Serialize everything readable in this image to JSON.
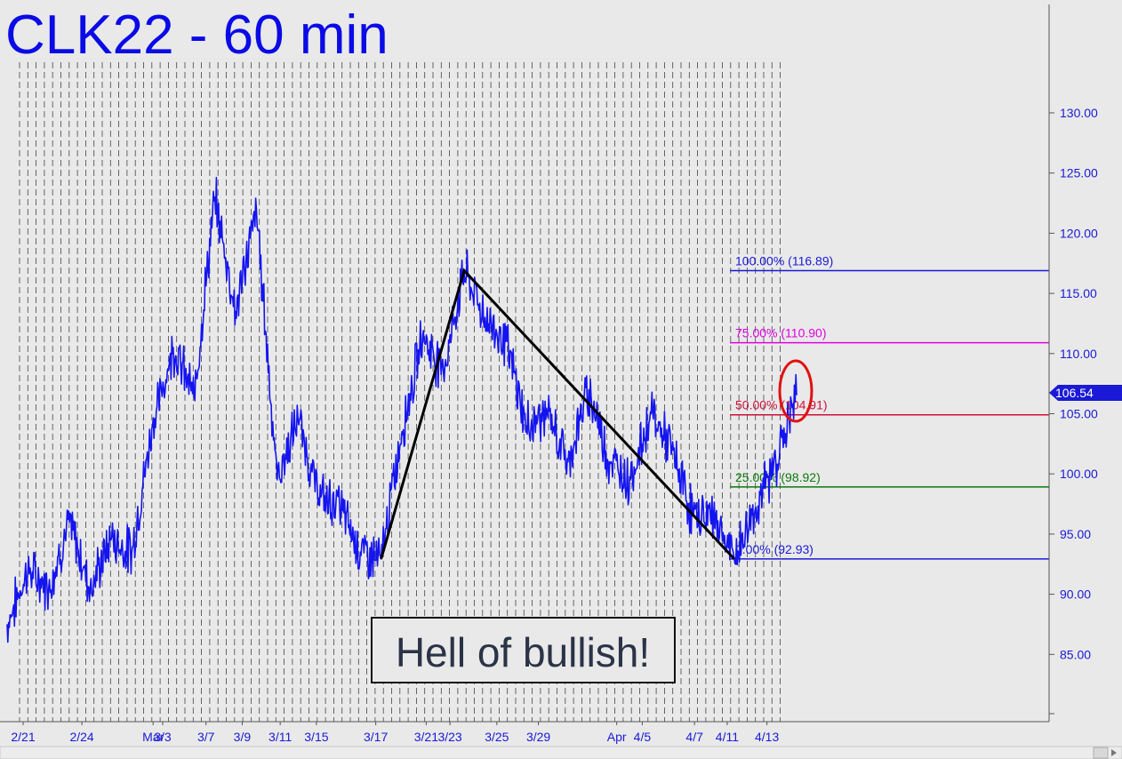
{
  "chart_data": {
    "type": "line",
    "title": "CLK22 - 60 min",
    "annotation": "Hell of bullish!",
    "grid": "vertical dashed lines",
    "ylim": [
      80,
      140
    ],
    "y_ticks": [
      "130.00",
      "125.00",
      "120.00",
      "115.00",
      "110.00",
      "105.00",
      "100.00",
      "95.00",
      "90.00",
      "85.00"
    ],
    "x_ticks": [
      "2/21",
      "2/24",
      "Mar",
      "3/3",
      "3/7",
      "3/9",
      "3/11",
      "3/15",
      "3/17",
      "3/21",
      "3/23",
      "3/25",
      "3/29",
      "Apr",
      "4/5",
      "4/7",
      "4/11",
      "4/13"
    ],
    "last_price": "106.54",
    "series": [
      {
        "x": [
          "2/21",
          "2/22",
          "2/23",
          "2/24",
          "2/25",
          "2/28",
          "3/1",
          "3/2",
          "3/3",
          "3/4",
          "3/7",
          "3/8",
          "3/9",
          "3/10",
          "3/11",
          "3/14",
          "3/15",
          "3/16",
          "3/17",
          "3/18",
          "3/21",
          "3/22",
          "3/23",
          "3/24",
          "3/25",
          "3/28",
          "3/29",
          "3/30",
          "3/31",
          "4/1",
          "4/4",
          "4/5",
          "4/6",
          "4/7",
          "4/8",
          "4/11",
          "4/12",
          "4/13",
          "4/14"
        ],
        "values": [
          87.5,
          92,
          90.5,
          96,
          90.5,
          94.5,
          93.5,
          104,
          110.5,
          106.5,
          123,
          113.5,
          122,
          99.5,
          104.5,
          98,
          97.5,
          93.5,
          92.93,
          103.5,
          111.5,
          108.5,
          116.89,
          113,
          111,
          104,
          105,
          101,
          107,
          101,
          99.5,
          105,
          102,
          96.5,
          96.5,
          92.93,
          97,
          101,
          106.54
        ]
      }
    ],
    "fib_levels": [
      {
        "label": "100.00% (116.89)",
        "value": 116.89,
        "color": "#1a1ad6"
      },
      {
        "label": "75.00% (110.90)",
        "value": 110.9,
        "color": "#e000e0"
      },
      {
        "label": "50.00% (104.91)",
        "value": 104.91,
        "color": "#d0103c"
      },
      {
        "label": "25.00% (98.92)",
        "value": 98.92,
        "color": "#0a7a0a"
      },
      {
        "label": "0.00% (92.93)",
        "value": 92.93,
        "color": "#1a1ad6"
      }
    ],
    "pattern_points": [
      {
        "x": "3/17",
        "value": 92.93
      },
      {
        "x": "3/23",
        "value": 116.89
      },
      {
        "x": "4/11",
        "value": 92.93
      }
    ],
    "colors": {
      "price": "#1414f0",
      "pattern": "#000000",
      "highlight": "#e01010",
      "title": "#0a0ae6",
      "axis": "#1a1ad6"
    }
  }
}
